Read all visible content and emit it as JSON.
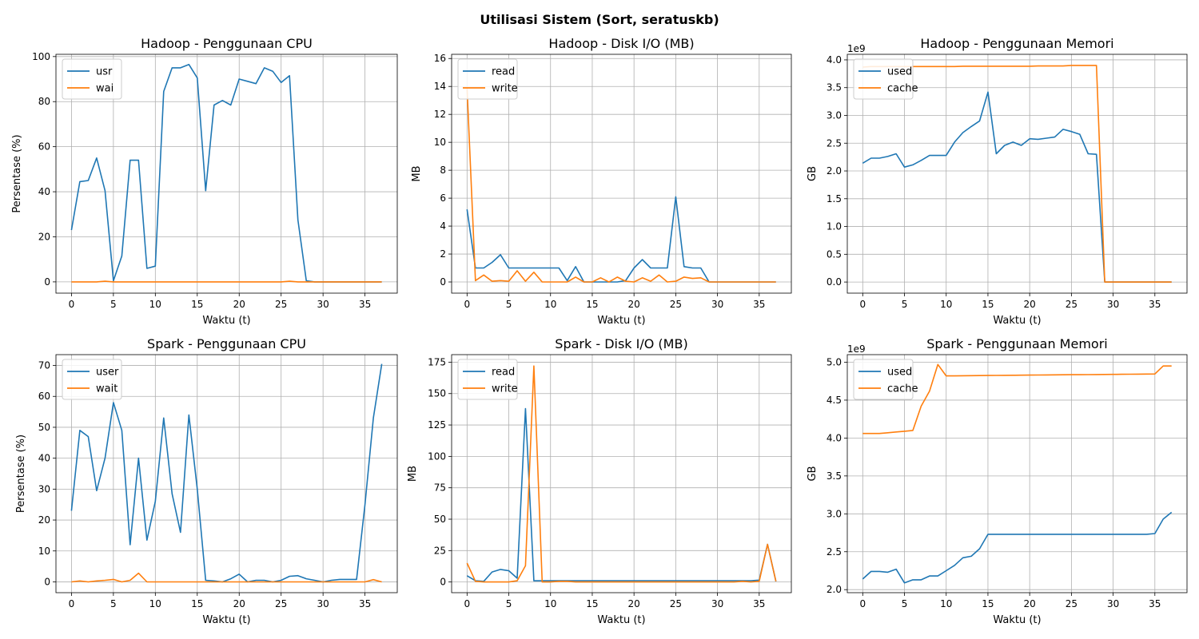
{
  "figure": {
    "title": "Utilisasi Sistem (Sort, seratuskb)"
  },
  "colors": {
    "series1": "#1f77b4",
    "series2": "#ff7f0e",
    "grid": "#b0b0b0"
  },
  "chart_data": [
    {
      "type": "line",
      "title": "Hadoop - Penggunaan CPU",
      "xlabel": "Waktu (t)",
      "ylabel": "Persentase (%)",
      "xlim": [
        -1.85,
        38.85
      ],
      "ylim": [
        -5,
        101
      ],
      "xticks": [
        0,
        5,
        10,
        15,
        20,
        25,
        30,
        35
      ],
      "yticks": [
        0,
        20,
        40,
        60,
        80,
        100
      ],
      "grid": true,
      "legend_position": "upper left",
      "x": [
        0,
        1,
        2,
        3,
        4,
        5,
        6,
        7,
        8,
        9,
        10,
        11,
        12,
        13,
        14,
        15,
        16,
        17,
        18,
        19,
        20,
        21,
        22,
        23,
        24,
        25,
        26,
        27,
        28,
        29,
        30,
        31,
        32,
        33,
        34,
        35,
        36,
        37
      ],
      "series": [
        {
          "name": "usr",
          "values": [
            23,
            44.5,
            45,
            55,
            40.5,
            0.5,
            11.5,
            54,
            54,
            6,
            7,
            84.5,
            95,
            95,
            96.5,
            90.5,
            40.5,
            78.5,
            80.5,
            78.5,
            90,
            89,
            88,
            95,
            93.5,
            88.5,
            91.5,
            27.5,
            0.5,
            0,
            0,
            0,
            0,
            0,
            0,
            0,
            0,
            0
          ]
        },
        {
          "name": "wai",
          "values": [
            0,
            0,
            0,
            0,
            0.3,
            0,
            0,
            0,
            0,
            0,
            0,
            0,
            0,
            0,
            0,
            0,
            0,
            0,
            0,
            0,
            0,
            0,
            0,
            0,
            0,
            0,
            0.3,
            0,
            0,
            0,
            0,
            0,
            0,
            0,
            0,
            0,
            0,
            0
          ]
        }
      ]
    },
    {
      "type": "line",
      "title": "Hadoop - Disk I/O (MB)",
      "xlabel": "Waktu (t)",
      "ylabel": "MB",
      "xlim": [
        -1.85,
        38.85
      ],
      "ylim": [
        -0.8,
        16.3
      ],
      "xticks": [
        0,
        5,
        10,
        15,
        20,
        25,
        30,
        35
      ],
      "yticks": [
        0,
        2,
        4,
        6,
        8,
        10,
        12,
        14,
        16
      ],
      "grid": true,
      "legend_position": "upper left",
      "x": [
        0,
        1,
        2,
        3,
        4,
        5,
        6,
        7,
        8,
        9,
        10,
        11,
        12,
        13,
        14,
        15,
        16,
        17,
        18,
        19,
        20,
        21,
        22,
        23,
        24,
        25,
        26,
        27,
        28,
        29,
        30,
        31,
        32,
        33,
        34,
        35,
        36,
        37
      ],
      "series": [
        {
          "name": "read",
          "values": [
            5.2,
            1,
            1,
            1.4,
            1.95,
            1,
            1,
            1,
            1,
            1,
            1,
            1,
            0.1,
            1.1,
            0,
            0,
            0,
            0,
            0,
            0.1,
            1,
            1.6,
            1,
            1,
            1,
            6.1,
            1.1,
            1,
            1,
            0,
            0,
            0,
            0,
            0,
            0,
            0,
            0,
            0
          ]
        },
        {
          "name": "write",
          "values": [
            13.9,
            0.1,
            0.5,
            0.05,
            0.1,
            0.05,
            0.8,
            0.05,
            0.7,
            0,
            0,
            0,
            0,
            0.35,
            0,
            0,
            0.3,
            0,
            0.35,
            0.05,
            0,
            0.3,
            0.05,
            0.5,
            0,
            0.05,
            0.35,
            0.25,
            0.3,
            0,
            0,
            0,
            0,
            0,
            0,
            0,
            0,
            0
          ]
        }
      ]
    },
    {
      "type": "line",
      "title": "Hadoop - Penggunaan Memori",
      "xlabel": "Waktu (t)",
      "ylabel": "GB",
      "y_offset_label": "1e9",
      "xlim": [
        -1.85,
        38.85
      ],
      "ylim": [
        -0.2,
        4.1
      ],
      "xticks": [
        0,
        5,
        10,
        15,
        20,
        25,
        30,
        35
      ],
      "yticks": [
        0.0,
        0.5,
        1.0,
        1.5,
        2.0,
        2.5,
        3.0,
        3.5,
        4.0
      ],
      "grid": true,
      "legend_position": "upper left",
      "x": [
        0,
        1,
        2,
        3,
        4,
        5,
        6,
        7,
        8,
        9,
        10,
        11,
        12,
        13,
        14,
        15,
        16,
        17,
        18,
        19,
        20,
        21,
        22,
        23,
        24,
        25,
        26,
        27,
        28,
        29,
        30,
        31,
        32,
        33,
        34,
        35,
        36,
        37
      ],
      "series": [
        {
          "name": "used",
          "values": [
            2.14,
            2.23,
            2.23,
            2.26,
            2.31,
            2.07,
            2.11,
            2.19,
            2.28,
            2.28,
            2.28,
            2.52,
            2.69,
            2.8,
            2.9,
            3.42,
            2.31,
            2.46,
            2.52,
            2.46,
            2.58,
            2.57,
            2.59,
            2.61,
            2.75,
            2.71,
            2.66,
            2.31,
            2.3,
            0,
            0,
            0,
            0,
            0,
            0,
            0,
            0,
            0
          ]
        },
        {
          "name": "cache",
          "values": [
            3.87,
            3.88,
            3.88,
            3.88,
            3.88,
            3.88,
            3.88,
            3.88,
            3.88,
            3.88,
            3.88,
            3.88,
            3.885,
            3.885,
            3.885,
            3.885,
            3.885,
            3.885,
            3.885,
            3.885,
            3.885,
            3.89,
            3.89,
            3.89,
            3.89,
            3.9,
            3.9,
            3.9,
            3.9,
            0,
            0,
            0,
            0,
            0,
            0,
            0,
            0,
            0
          ]
        }
      ]
    },
    {
      "type": "line",
      "title": "Spark - Penggunaan CPU",
      "xlabel": "Waktu (t)",
      "ylabel": "Persentase (%)",
      "xlim": [
        -1.85,
        38.85
      ],
      "ylim": [
        -3.5,
        73.5
      ],
      "xticks": [
        0,
        5,
        10,
        15,
        20,
        25,
        30,
        35
      ],
      "yticks": [
        0,
        10,
        20,
        30,
        40,
        50,
        60,
        70
      ],
      "grid": true,
      "legend_position": "upper left",
      "x": [
        0,
        1,
        2,
        3,
        4,
        5,
        6,
        7,
        8,
        9,
        10,
        11,
        12,
        13,
        14,
        15,
        16,
        17,
        18,
        19,
        20,
        21,
        22,
        23,
        24,
        25,
        26,
        27,
        28,
        29,
        30,
        31,
        32,
        33,
        34,
        35,
        36,
        37
      ],
      "series": [
        {
          "name": "user",
          "values": [
            23,
            49,
            47,
            29.5,
            40,
            58,
            49,
            12,
            40,
            13.5,
            26,
            53,
            28.5,
            16,
            54,
            30,
            0.5,
            0.3,
            0,
            1,
            2.5,
            0,
            0.5,
            0.5,
            0,
            0.5,
            1.8,
            2,
            1,
            0.5,
            0,
            0.5,
            0.8,
            0.8,
            0.8,
            25,
            53,
            70.5
          ]
        },
        {
          "name": "wait",
          "values": [
            0,
            0.3,
            0,
            0.3,
            0.5,
            0.8,
            0,
            0.5,
            2.8,
            0,
            0,
            0,
            0,
            0,
            0,
            0,
            0,
            0,
            0,
            0,
            0,
            0,
            0,
            0,
            0,
            0,
            0,
            0,
            0,
            0,
            0,
            0,
            0,
            0,
            0,
            0,
            0.7,
            0
          ]
        }
      ]
    },
    {
      "type": "line",
      "title": "Spark - Disk I/O (MB)",
      "xlabel": "Waktu (t)",
      "ylabel": "MB",
      "xlim": [
        -1.85,
        38.85
      ],
      "ylim": [
        -8.5,
        181
      ],
      "xticks": [
        0,
        5,
        10,
        15,
        20,
        25,
        30,
        35
      ],
      "yticks": [
        0,
        25,
        50,
        75,
        100,
        125,
        150,
        175
      ],
      "grid": true,
      "legend_position": "upper left",
      "x": [
        0,
        1,
        2,
        3,
        4,
        5,
        6,
        7,
        8,
        9,
        10,
        11,
        12,
        13,
        14,
        15,
        16,
        17,
        18,
        19,
        20,
        21,
        22,
        23,
        24,
        25,
        26,
        27,
        28,
        29,
        30,
        31,
        32,
        33,
        34,
        35,
        36,
        37
      ],
      "series": [
        {
          "name": "read",
          "values": [
            5,
            1,
            0.5,
            8,
            10,
            9,
            3,
            138,
            1,
            1,
            1,
            1,
            1,
            1,
            1,
            1,
            1,
            1,
            1,
            1,
            1,
            1,
            1,
            1,
            1,
            1,
            1,
            1,
            1,
            1,
            1,
            1,
            1,
            1,
            1,
            1.5,
            30,
            0.5
          ]
        },
        {
          "name": "write",
          "values": [
            15,
            0.5,
            0,
            0,
            0,
            0,
            1,
            13,
            172,
            0,
            0,
            0.5,
            0.5,
            0,
            0,
            0,
            0,
            0,
            0,
            0,
            0,
            0,
            0,
            0,
            0,
            0,
            0,
            0,
            0,
            0,
            0,
            0,
            0,
            0.5,
            0,
            0.5,
            30,
            0.5
          ]
        }
      ]
    },
    {
      "type": "line",
      "title": "Spark - Penggunaan Memori",
      "xlabel": "Waktu (t)",
      "ylabel": "GB",
      "y_offset_label": "1e9",
      "xlim": [
        -1.85,
        38.85
      ],
      "ylim": [
        1.96,
        5.1
      ],
      "xticks": [
        0,
        5,
        10,
        15,
        20,
        25,
        30,
        35
      ],
      "yticks": [
        2.0,
        2.5,
        3.0,
        3.5,
        4.0,
        4.5,
        5.0
      ],
      "grid": true,
      "legend_position": "upper left",
      "x": [
        0,
        1,
        2,
        3,
        4,
        5,
        6,
        7,
        8,
        9,
        10,
        11,
        12,
        13,
        14,
        15,
        16,
        17,
        18,
        19,
        20,
        21,
        22,
        23,
        24,
        25,
        26,
        27,
        28,
        29,
        30,
        31,
        32,
        33,
        34,
        35,
        36,
        37
      ],
      "series": [
        {
          "name": "used",
          "values": [
            2.14,
            2.24,
            2.24,
            2.23,
            2.27,
            2.09,
            2.13,
            2.13,
            2.18,
            2.18,
            2.25,
            2.32,
            2.42,
            2.44,
            2.54,
            2.73,
            2.73,
            2.73,
            2.73,
            2.73,
            2.73,
            2.73,
            2.73,
            2.73,
            2.73,
            2.73,
            2.73,
            2.73,
            2.73,
            2.73,
            2.73,
            2.73,
            2.73,
            2.73,
            2.73,
            2.74,
            2.93,
            3.02
          ]
        },
        {
          "name": "cache",
          "values": [
            4.06,
            4.06,
            4.06,
            4.07,
            4.08,
            4.09,
            4.1,
            4.42,
            4.62,
            4.97,
            4.82,
            4.82,
            4.822,
            4.823,
            4.824,
            4.825,
            4.826,
            4.827,
            4.828,
            4.829,
            4.83,
            4.831,
            4.832,
            4.833,
            4.834,
            4.835,
            4.836,
            4.837,
            4.838,
            4.839,
            4.84,
            4.841,
            4.842,
            4.843,
            4.844,
            4.845,
            4.95,
            4.95
          ]
        }
      ]
    }
  ]
}
